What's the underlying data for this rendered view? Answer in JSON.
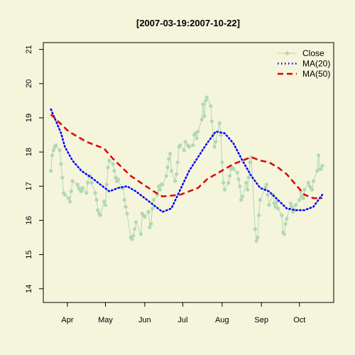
{
  "colors": {
    "background": "#f5f5dc",
    "close": "#b2d8b2",
    "ma20": "#0000ff",
    "ma50": "#dd0000"
  },
  "chart_data": {
    "type": "line",
    "title": "[2007-03-19:2007-10-22]",
    "xlabel": "",
    "ylabel": "",
    "grid": false,
    "legend_position": "top-right",
    "xlim": [
      "2007-03-13",
      "2007-10-28"
    ],
    "ylim": [
      13.6,
      21.2
    ],
    "y_ticks": [
      14,
      15,
      16,
      17,
      18,
      19,
      20,
      21
    ],
    "x_ticks": [
      {
        "label": "Apr",
        "date": "2007-04-01"
      },
      {
        "label": "May",
        "date": "2007-05-01"
      },
      {
        "label": "Jun",
        "date": "2007-06-01"
      },
      {
        "label": "Jul",
        "date": "2007-07-01"
      },
      {
        "label": "Aug",
        "date": "2007-08-01"
      },
      {
        "label": "Sep",
        "date": "2007-09-01"
      },
      {
        "label": "Oct",
        "date": "2007-10-01"
      }
    ],
    "series": [
      {
        "name": "Close",
        "style": "line-points",
        "points": [
          [
            "2007-03-19",
            17.45
          ],
          [
            "2007-03-20",
            17.9
          ],
          [
            "2007-03-21",
            18.05
          ],
          [
            "2007-03-22",
            18.15
          ],
          [
            "2007-03-23",
            18.2
          ],
          [
            "2007-03-26",
            18.05
          ],
          [
            "2007-03-27",
            17.65
          ],
          [
            "2007-03-28",
            17.25
          ],
          [
            "2007-03-29",
            16.8
          ],
          [
            "2007-03-30",
            16.75
          ],
          [
            "2007-04-02",
            16.65
          ],
          [
            "2007-04-03",
            16.55
          ],
          [
            "2007-04-04",
            16.85
          ],
          [
            "2007-04-05",
            17.15
          ],
          [
            "2007-04-09",
            17.05
          ],
          [
            "2007-04-10",
            16.95
          ],
          [
            "2007-04-11",
            16.9
          ],
          [
            "2007-04-12",
            16.85
          ],
          [
            "2007-04-13",
            16.95
          ],
          [
            "2007-04-16",
            16.8
          ],
          [
            "2007-04-17",
            17.1
          ],
          [
            "2007-04-18",
            17.3
          ],
          [
            "2007-04-19",
            17.3
          ],
          [
            "2007-04-20",
            17.1
          ],
          [
            "2007-04-23",
            16.8
          ],
          [
            "2007-04-24",
            16.6
          ],
          [
            "2007-04-25",
            16.3
          ],
          [
            "2007-04-26",
            16.2
          ],
          [
            "2007-04-27",
            16.15
          ],
          [
            "2007-04-30",
            16.55
          ],
          [
            "2007-05-01",
            16.45
          ],
          [
            "2007-05-02",
            17.05
          ],
          [
            "2007-05-03",
            17.55
          ],
          [
            "2007-05-04",
            17.75
          ],
          [
            "2007-05-07",
            17.65
          ],
          [
            "2007-05-08",
            17.45
          ],
          [
            "2007-05-09",
            17.25
          ],
          [
            "2007-05-10",
            17.15
          ],
          [
            "2007-05-11",
            17.2
          ],
          [
            "2007-05-14",
            16.95
          ],
          [
            "2007-05-15",
            16.95
          ],
          [
            "2007-05-16",
            16.6
          ],
          [
            "2007-05-17",
            16.4
          ],
          [
            "2007-05-18",
            16.2
          ],
          [
            "2007-05-21",
            15.5
          ],
          [
            "2007-05-22",
            15.45
          ],
          [
            "2007-05-23",
            15.55
          ],
          [
            "2007-05-24",
            15.75
          ],
          [
            "2007-05-25",
            15.95
          ],
          [
            "2007-05-29",
            15.6
          ],
          [
            "2007-05-30",
            16.2
          ],
          [
            "2007-05-31",
            16.15
          ],
          [
            "2007-06-01",
            16.1
          ],
          [
            "2007-06-04",
            16.25
          ],
          [
            "2007-06-05",
            15.8
          ],
          [
            "2007-06-06",
            15.9
          ],
          [
            "2007-06-07",
            16.35
          ],
          [
            "2007-06-08",
            16.6
          ],
          [
            "2007-06-11",
            16.75
          ],
          [
            "2007-06-12",
            17.0
          ],
          [
            "2007-06-13",
            16.9
          ],
          [
            "2007-06-14",
            17.05
          ],
          [
            "2007-06-15",
            17.05
          ],
          [
            "2007-06-18",
            17.3
          ],
          [
            "2007-06-19",
            17.55
          ],
          [
            "2007-06-20",
            17.8
          ],
          [
            "2007-06-21",
            17.95
          ],
          [
            "2007-06-22",
            17.45
          ],
          [
            "2007-06-25",
            17.15
          ],
          [
            "2007-06-26",
            17.35
          ],
          [
            "2007-06-27",
            17.7
          ],
          [
            "2007-06-28",
            18.15
          ],
          [
            "2007-06-29",
            18.2
          ],
          [
            "2007-07-02",
            18.05
          ],
          [
            "2007-07-03",
            18.3
          ],
          [
            "2007-07-05",
            18.2
          ],
          [
            "2007-07-06",
            18.15
          ],
          [
            "2007-07-09",
            18.2
          ],
          [
            "2007-07-10",
            18.5
          ],
          [
            "2007-07-11",
            18.55
          ],
          [
            "2007-07-12",
            18.4
          ],
          [
            "2007-07-13",
            18.6
          ],
          [
            "2007-07-16",
            18.95
          ],
          [
            "2007-07-17",
            19.4
          ],
          [
            "2007-07-18",
            19.05
          ],
          [
            "2007-07-19",
            19.5
          ],
          [
            "2007-07-20",
            19.6
          ],
          [
            "2007-07-23",
            19.35
          ],
          [
            "2007-07-24",
            18.9
          ],
          [
            "2007-07-25",
            18.5
          ],
          [
            "2007-07-26",
            18.15
          ],
          [
            "2007-07-27",
            18.3
          ],
          [
            "2007-07-30",
            18.85
          ],
          [
            "2007-07-31",
            18.5
          ],
          [
            "2007-08-01",
            17.7
          ],
          [
            "2007-08-02",
            17.1
          ],
          [
            "2007-08-03",
            16.9
          ],
          [
            "2007-08-06",
            17.1
          ],
          [
            "2007-08-07",
            17.3
          ],
          [
            "2007-08-08",
            17.5
          ],
          [
            "2007-08-09",
            17.55
          ],
          [
            "2007-08-10",
            17.5
          ],
          [
            "2007-08-13",
            17.4
          ],
          [
            "2007-08-14",
            17.2
          ],
          [
            "2007-08-15",
            17.0
          ],
          [
            "2007-08-16",
            16.6
          ],
          [
            "2007-08-17",
            16.7
          ],
          [
            "2007-08-20",
            17.1
          ],
          [
            "2007-08-21",
            16.9
          ],
          [
            "2007-08-22",
            17.25
          ],
          [
            "2007-08-23",
            17.7
          ],
          [
            "2007-08-24",
            17.85
          ],
          [
            "2007-08-27",
            15.75
          ],
          [
            "2007-08-28",
            15.4
          ],
          [
            "2007-08-29",
            15.5
          ],
          [
            "2007-08-30",
            16.15
          ],
          [
            "2007-08-31",
            16.6
          ],
          [
            "2007-09-04",
            16.95
          ],
          [
            "2007-09-05",
            17.05
          ],
          [
            "2007-09-06",
            16.75
          ],
          [
            "2007-09-07",
            16.45
          ],
          [
            "2007-09-10",
            16.75
          ],
          [
            "2007-09-11",
            16.5
          ],
          [
            "2007-09-12",
            16.4
          ],
          [
            "2007-09-13",
            16.55
          ],
          [
            "2007-09-14",
            16.35
          ],
          [
            "2007-09-17",
            16.15
          ],
          [
            "2007-09-18",
            15.65
          ],
          [
            "2007-09-19",
            15.6
          ],
          [
            "2007-09-20",
            15.9
          ],
          [
            "2007-09-21",
            16.05
          ],
          [
            "2007-09-24",
            16.5
          ],
          [
            "2007-09-25",
            16.4
          ],
          [
            "2007-09-26",
            16.25
          ],
          [
            "2007-09-27",
            16.3
          ],
          [
            "2007-09-28",
            16.45
          ],
          [
            "2007-10-01",
            16.6
          ],
          [
            "2007-10-02",
            16.85
          ],
          [
            "2007-10-03",
            16.7
          ],
          [
            "2007-10-04",
            16.65
          ],
          [
            "2007-10-05",
            16.9
          ],
          [
            "2007-10-08",
            17.1
          ],
          [
            "2007-10-09",
            17.0
          ],
          [
            "2007-10-10",
            16.95
          ],
          [
            "2007-10-11",
            16.9
          ],
          [
            "2007-10-12",
            17.15
          ],
          [
            "2007-10-15",
            17.45
          ],
          [
            "2007-10-16",
            17.9
          ],
          [
            "2007-10-17",
            17.5
          ],
          [
            "2007-10-18",
            17.5
          ],
          [
            "2007-10-19",
            17.6
          ]
        ]
      },
      {
        "name": "MA(20)",
        "style": "dotted",
        "points": [
          [
            "2007-03-19",
            19.25
          ],
          [
            "2007-03-23",
            18.9
          ],
          [
            "2007-03-27",
            18.55
          ],
          [
            "2007-03-30",
            18.15
          ],
          [
            "2007-04-05",
            17.75
          ],
          [
            "2007-04-12",
            17.45
          ],
          [
            "2007-04-20",
            17.25
          ],
          [
            "2007-04-27",
            17.05
          ],
          [
            "2007-05-04",
            16.85
          ],
          [
            "2007-05-11",
            16.95
          ],
          [
            "2007-05-18",
            17.0
          ],
          [
            "2007-05-25",
            16.85
          ],
          [
            "2007-06-01",
            16.65
          ],
          [
            "2007-06-08",
            16.45
          ],
          [
            "2007-06-15",
            16.25
          ],
          [
            "2007-06-22",
            16.35
          ],
          [
            "2007-06-29",
            16.9
          ],
          [
            "2007-07-06",
            17.45
          ],
          [
            "2007-07-13",
            17.85
          ],
          [
            "2007-07-20",
            18.25
          ],
          [
            "2007-07-27",
            18.6
          ],
          [
            "2007-08-03",
            18.55
          ],
          [
            "2007-08-10",
            18.25
          ],
          [
            "2007-08-17",
            17.75
          ],
          [
            "2007-08-24",
            17.3
          ],
          [
            "2007-08-31",
            16.95
          ],
          [
            "2007-09-07",
            16.85
          ],
          [
            "2007-09-14",
            16.6
          ],
          [
            "2007-09-21",
            16.35
          ],
          [
            "2007-09-28",
            16.3
          ],
          [
            "2007-10-05",
            16.3
          ],
          [
            "2007-10-12",
            16.4
          ],
          [
            "2007-10-19",
            16.75
          ]
        ]
      },
      {
        "name": "MA(50)",
        "style": "dashed",
        "points": [
          [
            "2007-03-19",
            19.1
          ],
          [
            "2007-03-26",
            18.85
          ],
          [
            "2007-04-02",
            18.6
          ],
          [
            "2007-04-16",
            18.3
          ],
          [
            "2007-04-30",
            18.1
          ],
          [
            "2007-05-07",
            17.8
          ],
          [
            "2007-05-14",
            17.55
          ],
          [
            "2007-05-21",
            17.3
          ],
          [
            "2007-05-31",
            17.05
          ],
          [
            "2007-06-08",
            16.85
          ],
          [
            "2007-06-15",
            16.7
          ],
          [
            "2007-06-29",
            16.75
          ],
          [
            "2007-07-06",
            16.85
          ],
          [
            "2007-07-13",
            16.95
          ],
          [
            "2007-07-20",
            17.2
          ],
          [
            "2007-07-27",
            17.35
          ],
          [
            "2007-08-03",
            17.5
          ],
          [
            "2007-08-10",
            17.65
          ],
          [
            "2007-08-17",
            17.75
          ],
          [
            "2007-08-24",
            17.85
          ],
          [
            "2007-08-31",
            17.75
          ],
          [
            "2007-09-07",
            17.7
          ],
          [
            "2007-09-14",
            17.55
          ],
          [
            "2007-09-21",
            17.35
          ],
          [
            "2007-09-28",
            17.05
          ],
          [
            "2007-10-05",
            16.75
          ],
          [
            "2007-10-12",
            16.65
          ],
          [
            "2007-10-19",
            16.65
          ]
        ]
      }
    ]
  }
}
